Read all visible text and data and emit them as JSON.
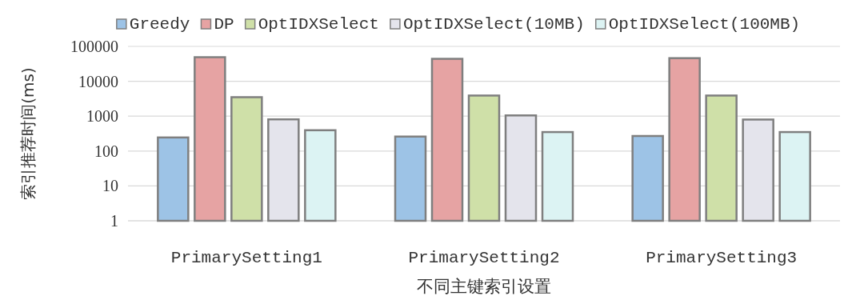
{
  "chart_data": {
    "type": "bar",
    "xlabel": "不同主键索引设置",
    "ylabel": "索引推荐时间(ms)",
    "categories": [
      "PrimarySetting1",
      "PrimarySetting2",
      "PrimarySetting3"
    ],
    "series": [
      {
        "name": "Greedy",
        "color": "#9dc3e6",
        "values": [
          245,
          260,
          270
        ]
      },
      {
        "name": "DP",
        "color": "#e6a3a3",
        "values": [
          49000,
          44000,
          46000
        ]
      },
      {
        "name": "OptIDXSelect",
        "color": "#cfe0a8",
        "values": [
          3500,
          3900,
          3900
        ]
      },
      {
        "name": "OptIDXSelect(10MB)",
        "color": "#e4e4ec",
        "values": [
          810,
          1050,
          800
        ]
      },
      {
        "name": "OptIDXSelect(100MB)",
        "color": "#dcf3f3",
        "values": [
          395,
          350,
          350
        ]
      }
    ],
    "log": "y",
    "ylim": [
      1,
      100000
    ],
    "yticks": [
      1,
      10,
      100,
      1000,
      10000,
      100000
    ],
    "grid": "y",
    "legend": "top"
  }
}
